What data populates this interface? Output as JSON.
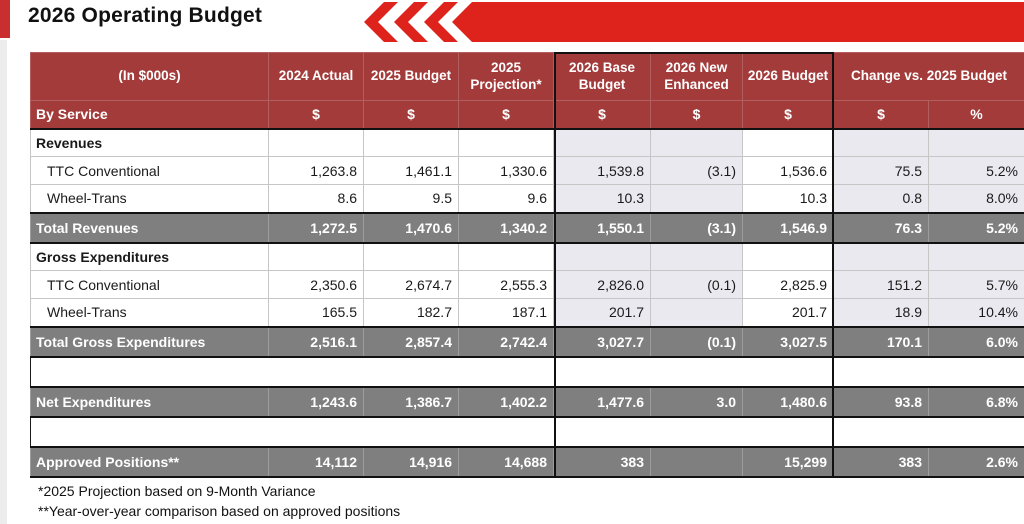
{
  "page": {
    "title": "2026 Operating Budget"
  },
  "colors": {
    "brand_red": "#DE231C",
    "accent_red": "#C92F2F",
    "header_red": "#A33B3B",
    "total_gray": "#7F7F7F",
    "band_gray": "#E9E9EF"
  },
  "decorations": {
    "chevron_icon_count": 3
  },
  "table": {
    "header_cells": [
      "(In $000s)",
      "2024 Actual",
      "2025 Budget",
      "2025 Projection*",
      "2026 Base Budget",
      "2026 New Enhanced",
      "2026 Budget"
    ],
    "change_header": "Change vs. 2025 Budget",
    "subheader": {
      "label": "By Service",
      "units": [
        "$",
        "$",
        "$",
        "$",
        "$",
        "$",
        "$",
        "%"
      ]
    },
    "rows": [
      {
        "type": "section",
        "label": "Revenues",
        "cells": [
          "",
          "",
          "",
          "",
          "",
          "",
          "",
          ""
        ]
      },
      {
        "type": "data",
        "label": "TTC Conventional",
        "cells": [
          "1,263.8",
          "1,461.1",
          "1,330.6",
          "1,539.8",
          "(3.1)",
          "1,536.6",
          "75.5",
          "5.2%"
        ]
      },
      {
        "type": "data",
        "label": "Wheel-Trans",
        "cells": [
          "8.6",
          "9.5",
          "9.6",
          "10.3",
          "",
          "10.3",
          "0.8",
          "8.0%"
        ]
      },
      {
        "type": "total",
        "label": "Total Revenues",
        "cells": [
          "1,272.5",
          "1,470.6",
          "1,340.2",
          "1,550.1",
          "(3.1)",
          "1,546.9",
          "76.3",
          "5.2%"
        ]
      },
      {
        "type": "section",
        "label": "Gross Expenditures",
        "cells": [
          "",
          "",
          "",
          "",
          "",
          "",
          "",
          ""
        ]
      },
      {
        "type": "data",
        "label": "TTC Conventional",
        "cells": [
          "2,350.6",
          "2,674.7",
          "2,555.3",
          "2,826.0",
          "(0.1)",
          "2,825.9",
          "151.2",
          "5.7%"
        ]
      },
      {
        "type": "data",
        "label": "Wheel-Trans",
        "cells": [
          "165.5",
          "182.7",
          "187.1",
          "201.7",
          "",
          "201.7",
          "18.9",
          "10.4%"
        ]
      },
      {
        "type": "total",
        "label": "Total Gross Expenditures",
        "cells": [
          "2,516.1",
          "2,857.4",
          "2,742.4",
          "3,027.7",
          "(0.1)",
          "3,027.5",
          "170.1",
          "6.0%"
        ]
      },
      {
        "type": "spacer",
        "label": "",
        "cells": [
          "",
          "",
          "",
          "",
          "",
          "",
          "",
          ""
        ]
      },
      {
        "type": "total",
        "label": "Net Expenditures",
        "cells": [
          "1,243.6",
          "1,386.7",
          "1,402.2",
          "1,477.6",
          "3.0",
          "1,480.6",
          "93.8",
          "6.8%"
        ]
      },
      {
        "type": "spacer",
        "label": "",
        "cells": [
          "",
          "",
          "",
          "",
          "",
          "",
          "",
          ""
        ]
      },
      {
        "type": "total",
        "label": "Approved Positions**",
        "cells": [
          "14,112",
          "14,916",
          "14,688",
          "383",
          "",
          "15,299",
          "383",
          "2.6%"
        ]
      }
    ]
  },
  "footnotes": [
    "*2025 Projection based on 9-Month Variance",
    "**Year-over-year comparison based on approved positions"
  ]
}
